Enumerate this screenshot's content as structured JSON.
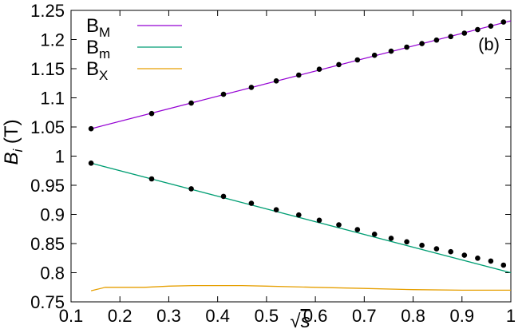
{
  "chart_data": {
    "type": "line",
    "xlabel": "√s",
    "ylabel": "B_i (T)",
    "xlim": [
      0.1,
      1.0
    ],
    "ylim": [
      0.75,
      1.25
    ],
    "xticks": [
      "0.1",
      "0.2",
      "0.3",
      "0.4",
      "0.5",
      "0.6",
      "0.7",
      "0.8",
      "0.9",
      "1"
    ],
    "yticks": [
      "0.75",
      "0.8",
      "0.85",
      "0.9",
      "0.95",
      "1",
      "1.05",
      "1.1",
      "1.15",
      "1.2",
      "1.25"
    ],
    "grid": false,
    "legend_position": "top-left",
    "annotation": "(b)",
    "series": [
      {
        "name": "B_M",
        "label_main": "B",
        "label_sub": "M",
        "color": "#9400d3",
        "x": [
          0.141,
          1.0
        ],
        "y": [
          1.047,
          1.232
        ]
      },
      {
        "name": "B_m",
        "label_main": "B",
        "label_sub": "m",
        "color": "#009e73",
        "x": [
          0.141,
          1.0
        ],
        "y": [
          0.988,
          0.8
        ]
      },
      {
        "name": "B_X",
        "label_main": "B",
        "label_sub": "X",
        "color": "#e69f00",
        "x": [
          0.141,
          0.17,
          0.25,
          0.3,
          0.35,
          0.4,
          0.45,
          0.5,
          0.6,
          0.7,
          0.8,
          0.9,
          1.0
        ],
        "y": [
          0.769,
          0.775,
          0.775,
          0.777,
          0.778,
          0.778,
          0.778,
          0.777,
          0.775,
          0.773,
          0.771,
          0.77,
          0.77
        ]
      }
    ],
    "points": {
      "color": "#000000",
      "upper": {
        "x": [
          0.141,
          0.265,
          0.346,
          0.412,
          0.469,
          0.52,
          0.566,
          0.608,
          0.648,
          0.686,
          0.721,
          0.755,
          0.787,
          0.818,
          0.848,
          0.877,
          0.905,
          0.932,
          0.959,
          0.985
        ],
        "y": [
          1.047,
          1.073,
          1.091,
          1.106,
          1.118,
          1.129,
          1.139,
          1.149,
          1.157,
          1.165,
          1.173,
          1.18,
          1.187,
          1.193,
          1.199,
          1.205,
          1.211,
          1.217,
          1.223,
          1.23
        ]
      },
      "lower": {
        "x": [
          0.141,
          0.265,
          0.346,
          0.412,
          0.469,
          0.52,
          0.566,
          0.608,
          0.648,
          0.686,
          0.721,
          0.755,
          0.787,
          0.818,
          0.848,
          0.877,
          0.905,
          0.932,
          0.959,
          0.985
        ],
        "y": [
          0.988,
          0.961,
          0.944,
          0.931,
          0.919,
          0.908,
          0.899,
          0.89,
          0.882,
          0.874,
          0.866,
          0.859,
          0.853,
          0.847,
          0.841,
          0.836,
          0.83,
          0.825,
          0.82,
          0.813
        ]
      }
    }
  }
}
